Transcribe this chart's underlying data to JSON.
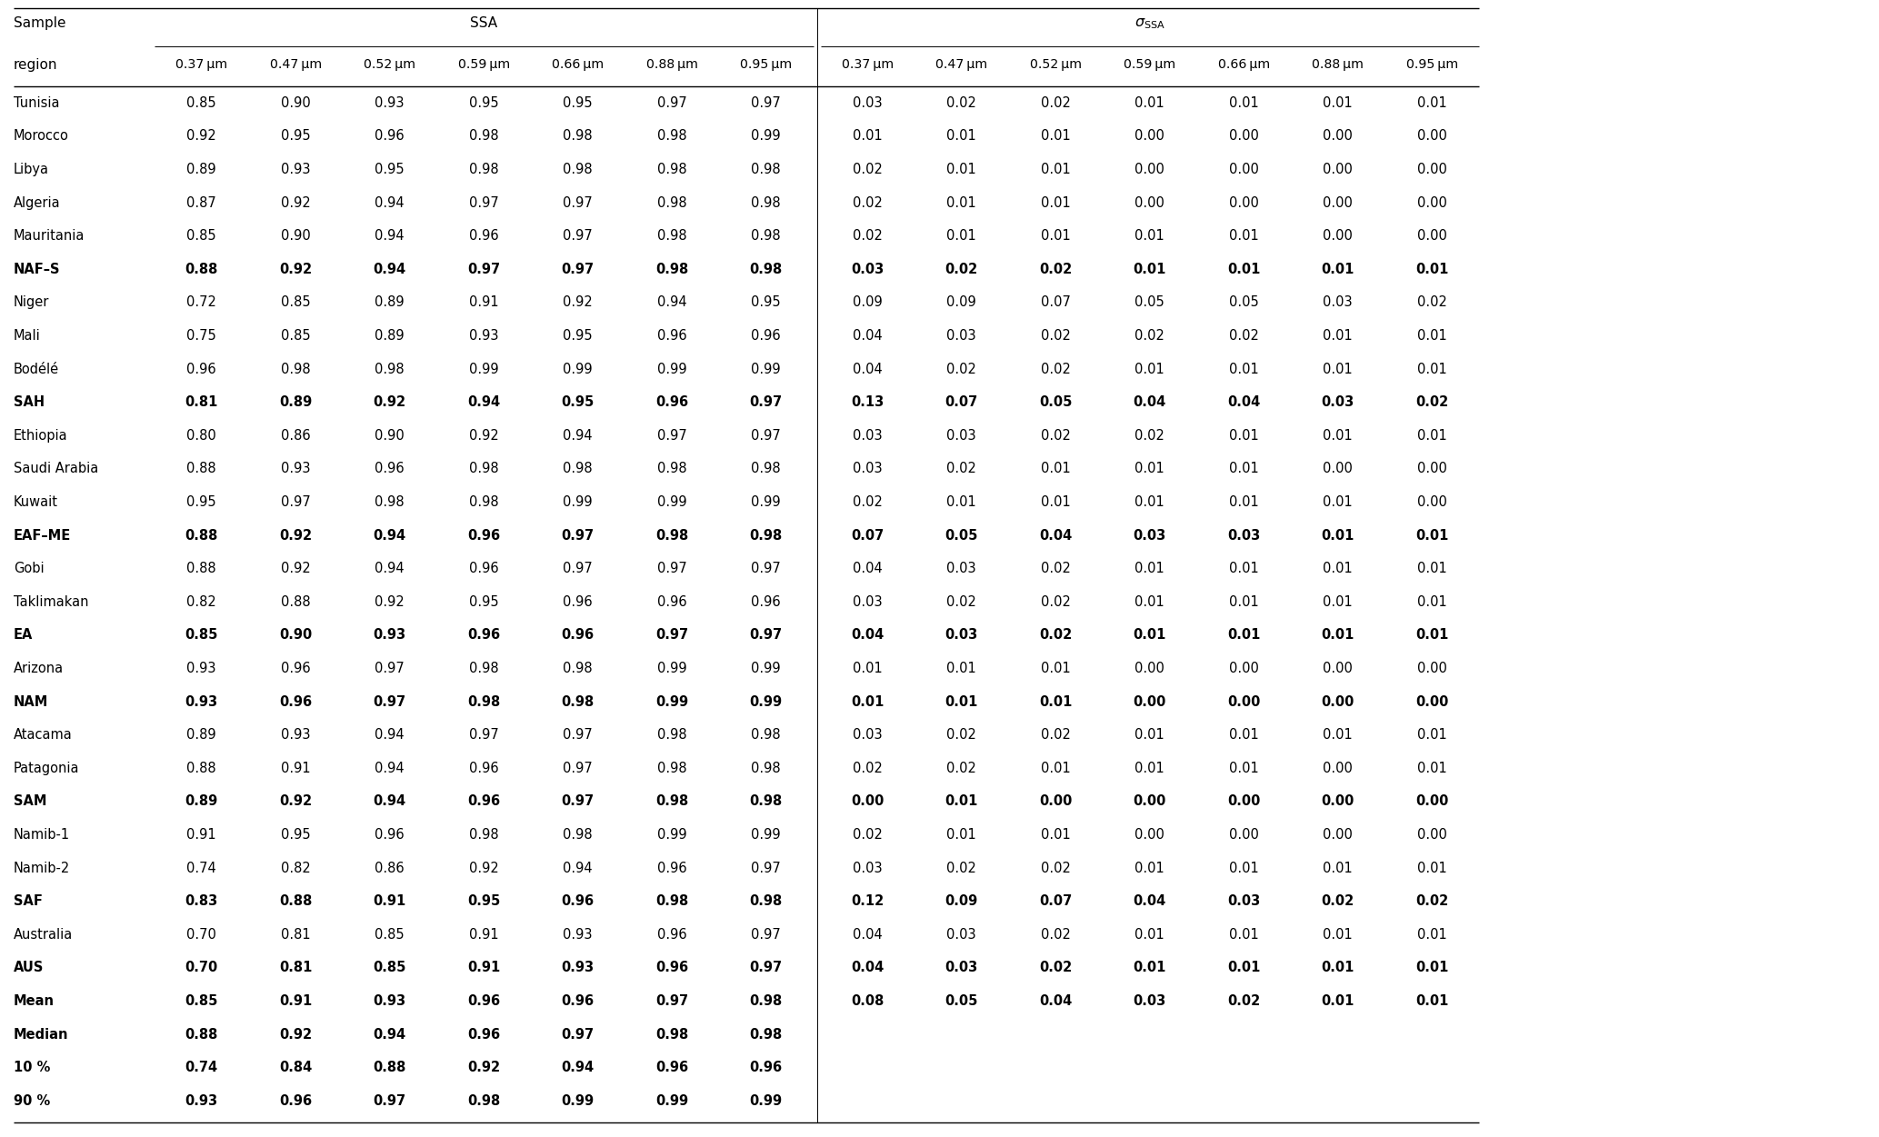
{
  "rows": [
    [
      "Tunisia",
      "0.85",
      "0.90",
      "0.93",
      "0.95",
      "0.95",
      "0.97",
      "0.97",
      "0.03",
      "0.02",
      "0.02",
      "0.01",
      "0.01",
      "0.01",
      "0.01"
    ],
    [
      "Morocco",
      "0.92",
      "0.95",
      "0.96",
      "0.98",
      "0.98",
      "0.98",
      "0.99",
      "0.01",
      "0.01",
      "0.01",
      "0.00",
      "0.00",
      "0.00",
      "0.00"
    ],
    [
      "Libya",
      "0.89",
      "0.93",
      "0.95",
      "0.98",
      "0.98",
      "0.98",
      "0.98",
      "0.02",
      "0.01",
      "0.01",
      "0.00",
      "0.00",
      "0.00",
      "0.00"
    ],
    [
      "Algeria",
      "0.87",
      "0.92",
      "0.94",
      "0.97",
      "0.97",
      "0.98",
      "0.98",
      "0.02",
      "0.01",
      "0.01",
      "0.00",
      "0.00",
      "0.00",
      "0.00"
    ],
    [
      "Mauritania",
      "0.85",
      "0.90",
      "0.94",
      "0.96",
      "0.97",
      "0.98",
      "0.98",
      "0.02",
      "0.01",
      "0.01",
      "0.01",
      "0.01",
      "0.00",
      "0.00"
    ],
    [
      "NAF–S",
      "0.88",
      "0.92",
      "0.94",
      "0.97",
      "0.97",
      "0.98",
      "0.98",
      "0.03",
      "0.02",
      "0.02",
      "0.01",
      "0.01",
      "0.01",
      "0.01"
    ],
    [
      "Niger",
      "0.72",
      "0.85",
      "0.89",
      "0.91",
      "0.92",
      "0.94",
      "0.95",
      "0.09",
      "0.09",
      "0.07",
      "0.05",
      "0.05",
      "0.03",
      "0.02"
    ],
    [
      "Mali",
      "0.75",
      "0.85",
      "0.89",
      "0.93",
      "0.95",
      "0.96",
      "0.96",
      "0.04",
      "0.03",
      "0.02",
      "0.02",
      "0.02",
      "0.01",
      "0.01"
    ],
    [
      "Bodélé",
      "0.96",
      "0.98",
      "0.98",
      "0.99",
      "0.99",
      "0.99",
      "0.99",
      "0.04",
      "0.02",
      "0.02",
      "0.01",
      "0.01",
      "0.01",
      "0.01"
    ],
    [
      "SAH",
      "0.81",
      "0.89",
      "0.92",
      "0.94",
      "0.95",
      "0.96",
      "0.97",
      "0.13",
      "0.07",
      "0.05",
      "0.04",
      "0.04",
      "0.03",
      "0.02"
    ],
    [
      "Ethiopia",
      "0.80",
      "0.86",
      "0.90",
      "0.92",
      "0.94",
      "0.97",
      "0.97",
      "0.03",
      "0.03",
      "0.02",
      "0.02",
      "0.01",
      "0.01",
      "0.01"
    ],
    [
      "Saudi Arabia",
      "0.88",
      "0.93",
      "0.96",
      "0.98",
      "0.98",
      "0.98",
      "0.98",
      "0.03",
      "0.02",
      "0.01",
      "0.01",
      "0.01",
      "0.00",
      "0.00"
    ],
    [
      "Kuwait",
      "0.95",
      "0.97",
      "0.98",
      "0.98",
      "0.99",
      "0.99",
      "0.99",
      "0.02",
      "0.01",
      "0.01",
      "0.01",
      "0.01",
      "0.01",
      "0.00"
    ],
    [
      "EAF–ME",
      "0.88",
      "0.92",
      "0.94",
      "0.96",
      "0.97",
      "0.98",
      "0.98",
      "0.07",
      "0.05",
      "0.04",
      "0.03",
      "0.03",
      "0.01",
      "0.01"
    ],
    [
      "Gobi",
      "0.88",
      "0.92",
      "0.94",
      "0.96",
      "0.97",
      "0.97",
      "0.97",
      "0.04",
      "0.03",
      "0.02",
      "0.01",
      "0.01",
      "0.01",
      "0.01"
    ],
    [
      "Taklimakan",
      "0.82",
      "0.88",
      "0.92",
      "0.95",
      "0.96",
      "0.96",
      "0.96",
      "0.03",
      "0.02",
      "0.02",
      "0.01",
      "0.01",
      "0.01",
      "0.01"
    ],
    [
      "EA",
      "0.85",
      "0.90",
      "0.93",
      "0.96",
      "0.96",
      "0.97",
      "0.97",
      "0.04",
      "0.03",
      "0.02",
      "0.01",
      "0.01",
      "0.01",
      "0.01"
    ],
    [
      "Arizona",
      "0.93",
      "0.96",
      "0.97",
      "0.98",
      "0.98",
      "0.99",
      "0.99",
      "0.01",
      "0.01",
      "0.01",
      "0.00",
      "0.00",
      "0.00",
      "0.00"
    ],
    [
      "NAM",
      "0.93",
      "0.96",
      "0.97",
      "0.98",
      "0.98",
      "0.99",
      "0.99",
      "0.01",
      "0.01",
      "0.01",
      "0.00",
      "0.00",
      "0.00",
      "0.00"
    ],
    [
      "Atacama",
      "0.89",
      "0.93",
      "0.94",
      "0.97",
      "0.97",
      "0.98",
      "0.98",
      "0.03",
      "0.02",
      "0.02",
      "0.01",
      "0.01",
      "0.01",
      "0.01"
    ],
    [
      "Patagonia",
      "0.88",
      "0.91",
      "0.94",
      "0.96",
      "0.97",
      "0.98",
      "0.98",
      "0.02",
      "0.02",
      "0.01",
      "0.01",
      "0.01",
      "0.00",
      "0.01"
    ],
    [
      "SAM",
      "0.89",
      "0.92",
      "0.94",
      "0.96",
      "0.97",
      "0.98",
      "0.98",
      "0.00",
      "0.01",
      "0.00",
      "0.00",
      "0.00",
      "0.00",
      "0.00"
    ],
    [
      "Namib-1",
      "0.91",
      "0.95",
      "0.96",
      "0.98",
      "0.98",
      "0.99",
      "0.99",
      "0.02",
      "0.01",
      "0.01",
      "0.00",
      "0.00",
      "0.00",
      "0.00"
    ],
    [
      "Namib-2",
      "0.74",
      "0.82",
      "0.86",
      "0.92",
      "0.94",
      "0.96",
      "0.97",
      "0.03",
      "0.02",
      "0.02",
      "0.01",
      "0.01",
      "0.01",
      "0.01"
    ],
    [
      "SAF",
      "0.83",
      "0.88",
      "0.91",
      "0.95",
      "0.96",
      "0.98",
      "0.98",
      "0.12",
      "0.09",
      "0.07",
      "0.04",
      "0.03",
      "0.02",
      "0.02"
    ],
    [
      "Australia",
      "0.70",
      "0.81",
      "0.85",
      "0.91",
      "0.93",
      "0.96",
      "0.97",
      "0.04",
      "0.03",
      "0.02",
      "0.01",
      "0.01",
      "0.01",
      "0.01"
    ],
    [
      "AUS",
      "0.70",
      "0.81",
      "0.85",
      "0.91",
      "0.93",
      "0.96",
      "0.97",
      "0.04",
      "0.03",
      "0.02",
      "0.01",
      "0.01",
      "0.01",
      "0.01"
    ],
    [
      "Mean",
      "0.85",
      "0.91",
      "0.93",
      "0.96",
      "0.96",
      "0.97",
      "0.98",
      "0.08",
      "0.05",
      "0.04",
      "0.03",
      "0.02",
      "0.01",
      "0.01"
    ],
    [
      "Median",
      "0.88",
      "0.92",
      "0.94",
      "0.96",
      "0.97",
      "0.98",
      "0.98",
      "",
      "",
      "",
      "",
      "",
      "",
      ""
    ],
    [
      "10 %",
      "0.74",
      "0.84",
      "0.88",
      "0.92",
      "0.94",
      "0.96",
      "0.96",
      "",
      "",
      "",
      "",
      "",
      "",
      ""
    ],
    [
      "90 %",
      "0.93",
      "0.96",
      "0.97",
      "0.98",
      "0.99",
      "0.99",
      "0.99",
      "",
      "",
      "",
      "",
      "",
      "",
      ""
    ]
  ],
  "bold_rows": [
    "NAF–S",
    "SAH",
    "EAF–ME",
    "EA",
    "NAM",
    "SAM",
    "SAF",
    "AUS",
    "Mean",
    "Median",
    "10 %",
    "90 %"
  ],
  "wavelengths": [
    "0.37 μm",
    "0.47 μm",
    "0.52 μm",
    "0.59 μm",
    "0.66 μm",
    "0.88 μm",
    "0.95 μm"
  ]
}
